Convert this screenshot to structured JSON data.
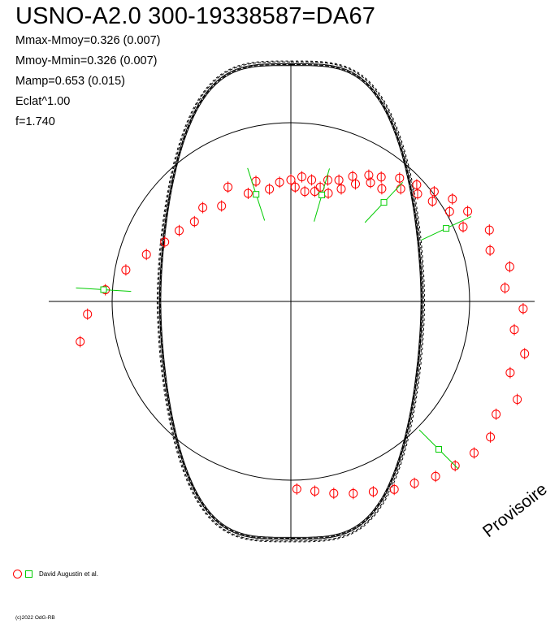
{
  "title": "USNO-A2.0 300-19338587=DA67",
  "stats": {
    "mmax_mmoy": "Mmax-Mmoy=0.326 (0.007)",
    "mmoy_mmin": "Mmoy-Mmin=0.326 (0.007)",
    "mamp": "Mamp=0.653 (0.015)",
    "eclat": "Eclat^1.00",
    "f": "f=1.740"
  },
  "watermark": "Provisoire",
  "legend": {
    "label": "David Augustin et al."
  },
  "copyright": "(c)2022 OdG-RB",
  "colors": {
    "observations": "#ff0000",
    "secondary": "#00cc00",
    "curve": "#000000"
  },
  "chart_data": {
    "type": "scatter",
    "coordinate_system": "polar",
    "phase_unit": "cycle",
    "reference_circle_radius": 1.0,
    "amplitude": 0.653,
    "grid": false,
    "series": [
      {
        "name": "David Augustin et al.",
        "marker": "circle",
        "points": [
          [
            0.0,
            0.68
          ],
          [
            0.006,
            0.64
          ],
          [
            0.014,
            0.7
          ],
          [
            0.02,
            0.62
          ],
          [
            0.027,
            0.69
          ],
          [
            0.034,
            0.63
          ],
          [
            0.04,
            0.66
          ],
          [
            0.047,
            0.71
          ],
          [
            0.053,
            0.64
          ],
          [
            0.06,
            0.73
          ],
          [
            0.067,
            0.69
          ],
          [
            0.073,
            0.78
          ],
          [
            0.08,
            0.75
          ],
          [
            0.088,
            0.83
          ],
          [
            0.094,
            0.8
          ],
          [
            0.1,
            0.86
          ],
          [
            0.108,
            0.81
          ],
          [
            0.115,
            0.92
          ],
          [
            0.123,
            0.88
          ],
          [
            0.131,
            0.96
          ],
          [
            0.138,
            0.93
          ],
          [
            0.146,
            1.01
          ],
          [
            0.152,
            0.97
          ],
          [
            0.16,
            1.07
          ],
          [
            0.168,
            1.02
          ],
          [
            0.175,
            1.11
          ],
          [
            0.185,
            1.05
          ],
          [
            0.195,
            1.18
          ],
          [
            0.21,
            1.15
          ],
          [
            0.225,
            1.24
          ],
          [
            0.24,
            1.2
          ],
          [
            0.255,
            1.3
          ],
          [
            0.27,
            1.26
          ],
          [
            0.285,
            1.34
          ],
          [
            0.3,
            1.29
          ],
          [
            0.315,
            1.38
          ],
          [
            0.33,
            1.31
          ],
          [
            0.345,
            1.35
          ],
          [
            0.36,
            1.33
          ],
          [
            0.375,
            1.3
          ],
          [
            0.39,
            1.27
          ],
          [
            0.405,
            1.23
          ],
          [
            0.42,
            1.2
          ],
          [
            0.435,
            1.16
          ],
          [
            0.45,
            1.13
          ],
          [
            0.465,
            1.1
          ],
          [
            0.48,
            1.07
          ],
          [
            0.495,
            1.05
          ],
          [
            0.72,
            1.2
          ],
          [
            0.74,
            1.14
          ],
          [
            0.76,
            1.04
          ],
          [
            0.78,
            0.94
          ],
          [
            0.8,
            0.85
          ],
          [
            0.82,
            0.78
          ],
          [
            0.84,
            0.74
          ],
          [
            0.86,
            0.7
          ],
          [
            0.88,
            0.72
          ],
          [
            0.9,
            0.66
          ],
          [
            0.92,
            0.73
          ],
          [
            0.94,
            0.65
          ],
          [
            0.955,
            0.7
          ],
          [
            0.97,
            0.64
          ],
          [
            0.985,
            0.67
          ]
        ]
      },
      {
        "name": "",
        "marker": "square",
        "points": [
          [
            0.045,
            0.62
          ],
          [
            0.95,
            0.63
          ],
          [
            0.12,
            0.76
          ],
          [
            0.18,
            0.96
          ],
          [
            0.375,
            1.17
          ],
          [
            0.76,
            1.05
          ]
        ]
      }
    ]
  }
}
